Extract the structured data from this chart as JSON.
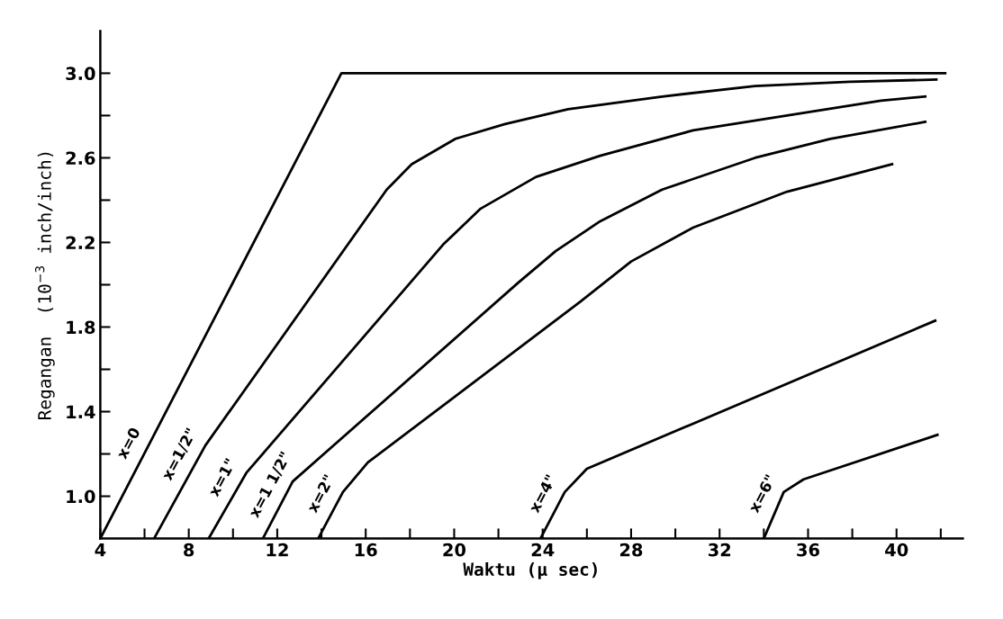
{
  "chart_data": {
    "type": "line",
    "xlabel": "Waktu (μ sec)",
    "ylabel": "Regangan  (10$^{−3}$ inch/inch)",
    "xlim": [
      4,
      43
    ],
    "ylim": [
      0.8,
      3.2
    ],
    "xticks": [
      4,
      {
        "value": 6,
        "label": null
      },
      8,
      {
        "value": 10,
        "label": null
      },
      12,
      {
        "value": 14,
        "label": null
      },
      16,
      {
        "value": 18,
        "label": null
      },
      20,
      {
        "value": 22,
        "label": null
      },
      24,
      {
        "value": 26,
        "label": null
      },
      28,
      {
        "value": 30,
        "label": null
      },
      32,
      {
        "value": 34,
        "label": null
      },
      36,
      {
        "value": 38,
        "label": null
      },
      40,
      {
        "value": 42,
        "label": null
      }
    ],
    "yticks": [
      {
        "value": 1,
        "label": "1.0"
      },
      {
        "value": 1.2,
        "label": null
      },
      1.4,
      {
        "value": 1.6,
        "label": null
      },
      1.8,
      {
        "value": 2.0,
        "label": null
      },
      2.2,
      {
        "value": 2.4,
        "label": null
      },
      2.6,
      {
        "value": 2.8,
        "label": null
      },
      {
        "value": 3,
        "label": "3.0"
      }
    ],
    "grid": false,
    "legend": false,
    "marker": "none",
    "line_style": "solid",
    "series": [
      {
        "name": "x=0",
        "color": "#000000",
        "x": [
          4,
          14.9,
          42.2
        ],
        "values": [
          0.8,
          3.0,
          3.0
        ]
      },
      {
        "name": "x=1/2\"",
        "color": "#000000",
        "x": [
          6.43,
          8.75,
          16.95,
          18.08,
          20.06,
          22.3,
          25.15,
          29.4,
          33.6,
          37.9,
          41.8
        ],
        "values": [
          0.8,
          1.24,
          2.45,
          2.57,
          2.69,
          2.76,
          2.83,
          2.89,
          2.94,
          2.96,
          2.97
        ]
      },
      {
        "name": "x=1\"",
        "color": "#000000",
        "x": [
          8.9,
          10.6,
          19.5,
          21.2,
          23.7,
          26.6,
          30.8,
          35.05,
          39.3,
          41.3
        ],
        "values": [
          0.8,
          1.11,
          2.19,
          2.36,
          2.51,
          2.61,
          2.73,
          2.8,
          2.87,
          2.89
        ]
      },
      {
        "name": "x=1 1/2\"",
        "color": "#000000",
        "x": [
          11.35,
          12.7,
          22.9,
          24.6,
          26.6,
          29.4,
          33.6,
          37.0,
          41.3
        ],
        "values": [
          0.8,
          1.07,
          2.01,
          2.16,
          2.3,
          2.45,
          2.6,
          2.69,
          2.77
        ]
      },
      {
        "name": "x=2\"",
        "color": "#000000",
        "x": [
          13.85,
          14.97,
          16.1,
          25.7,
          28.0,
          30.8,
          35.05,
          39.8
        ],
        "values": [
          0.8,
          1.02,
          1.16,
          1.92,
          2.11,
          2.27,
          2.44,
          2.57
        ]
      },
      {
        "name": "x=4\"",
        "color": "#000000",
        "x": [
          23.9,
          25.0,
          26.0,
          41.75
        ],
        "values": [
          0.8,
          1.02,
          1.13,
          1.83
        ]
      },
      {
        "name": "x=6\"",
        "color": "#000000",
        "x": [
          34.0,
          34.9,
          35.8,
          41.85
        ],
        "values": [
          0.8,
          1.02,
          1.08,
          1.29
        ]
      }
    ]
  }
}
